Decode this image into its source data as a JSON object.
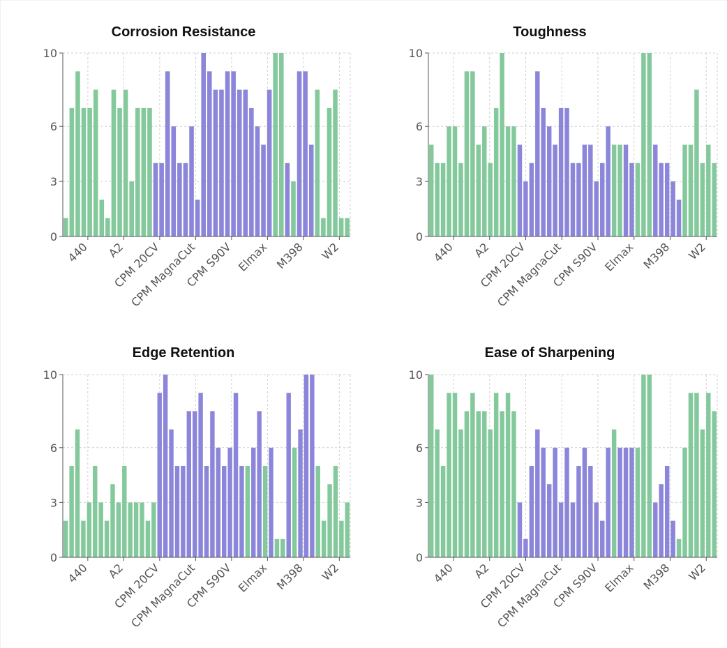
{
  "colors": {
    "green": "#84c99b",
    "purple": "#8b86d9",
    "grid": "#cfcfcf",
    "axis": "#555555"
  },
  "chart_data": [
    {
      "type": "bar",
      "title": "Corrosion Resistance",
      "ylim": [
        0,
        10
      ],
      "yticks": [
        0,
        3,
        6,
        10
      ],
      "xticks": [
        "440",
        "A2",
        "CPM 20CV",
        "CPM MagnaCut",
        "CPM S90V",
        "Elmax",
        "M398",
        "W2"
      ],
      "values": [
        1,
        7,
        9,
        7,
        7,
        8,
        2,
        1,
        8,
        7,
        8,
        3,
        7,
        7,
        7,
        4,
        4,
        9,
        6,
        4,
        4,
        6,
        2,
        10,
        9,
        8,
        8,
        9,
        9,
        8,
        8,
        7,
        6,
        5,
        8,
        10,
        10,
        4,
        3,
        9,
        9,
        5,
        8,
        1,
        7,
        8,
        1,
        1
      ],
      "groups": [
        "green",
        "green",
        "green",
        "green",
        "green",
        "green",
        "green",
        "green",
        "green",
        "green",
        "green",
        "green",
        "green",
        "green",
        "green",
        "purple",
        "purple",
        "purple",
        "purple",
        "purple",
        "purple",
        "purple",
        "purple",
        "purple",
        "purple",
        "purple",
        "purple",
        "purple",
        "purple",
        "purple",
        "purple",
        "purple",
        "purple",
        "purple",
        "purple",
        "green",
        "green",
        "purple",
        "green",
        "purple",
        "purple",
        "purple",
        "green",
        "green",
        "green",
        "green",
        "green",
        "green"
      ]
    },
    {
      "type": "bar",
      "title": "Toughness",
      "ylim": [
        0,
        10
      ],
      "yticks": [
        0,
        3,
        6,
        10
      ],
      "xticks": [
        "440",
        "A2",
        "CPM 20CV",
        "CPM MagnaCut",
        "CPM S90V",
        "Elmax",
        "M398",
        "W2"
      ],
      "values": [
        5,
        4,
        4,
        6,
        6,
        4,
        9,
        9,
        5,
        6,
        4,
        7,
        10,
        6,
        6,
        5,
        3,
        4,
        9,
        7,
        6,
        5,
        7,
        7,
        4,
        4,
        5,
        5,
        3,
        4,
        6,
        5,
        5,
        5,
        4,
        4,
        10,
        10,
        5,
        4,
        4,
        3,
        2,
        5,
        5,
        8,
        4,
        5,
        4
      ],
      "groups": [
        "green",
        "green",
        "green",
        "green",
        "green",
        "green",
        "green",
        "green",
        "green",
        "green",
        "green",
        "green",
        "green",
        "green",
        "green",
        "purple",
        "purple",
        "purple",
        "purple",
        "purple",
        "purple",
        "purple",
        "purple",
        "purple",
        "purple",
        "purple",
        "purple",
        "purple",
        "purple",
        "purple",
        "purple",
        "green",
        "green",
        "purple",
        "purple",
        "green",
        "green",
        "green",
        "purple",
        "purple",
        "purple",
        "purple",
        "purple",
        "green",
        "green",
        "green",
        "green",
        "green",
        "green"
      ]
    },
    {
      "type": "bar",
      "title": "Edge Retention",
      "ylim": [
        0,
        10
      ],
      "yticks": [
        0,
        3,
        6,
        10
      ],
      "xticks": [
        "440",
        "A2",
        "CPM 20CV",
        "CPM MagnaCut",
        "CPM S90V",
        "Elmax",
        "M398",
        "W2"
      ],
      "values": [
        2,
        5,
        7,
        2,
        3,
        5,
        3,
        2,
        4,
        3,
        5,
        3,
        3,
        3,
        2,
        3,
        9,
        10,
        7,
        5,
        5,
        8,
        8,
        9,
        5,
        8,
        6,
        5,
        6,
        9,
        5,
        5,
        6,
        8,
        5,
        6,
        1,
        1,
        9,
        6,
        7,
        10,
        10,
        5,
        2,
        4,
        5,
        2,
        3
      ],
      "groups": [
        "green",
        "green",
        "green",
        "green",
        "green",
        "green",
        "green",
        "green",
        "green",
        "green",
        "green",
        "green",
        "green",
        "green",
        "green",
        "green",
        "purple",
        "purple",
        "purple",
        "purple",
        "purple",
        "purple",
        "purple",
        "purple",
        "purple",
        "purple",
        "purple",
        "purple",
        "purple",
        "purple",
        "purple",
        "green",
        "purple",
        "purple",
        "green",
        "purple",
        "green",
        "green",
        "purple",
        "green",
        "purple",
        "purple",
        "purple",
        "green",
        "green",
        "green",
        "green",
        "green",
        "green"
      ]
    },
    {
      "type": "bar",
      "title": "Ease of Sharpening",
      "ylim": [
        0,
        10
      ],
      "yticks": [
        0,
        3,
        6,
        10
      ],
      "xticks": [
        "440",
        "A2",
        "CPM 20CV",
        "CPM MagnaCut",
        "CPM S90V",
        "Elmax",
        "M398",
        "W2"
      ],
      "values": [
        10,
        7,
        5,
        9,
        9,
        7,
        8,
        9,
        8,
        8,
        7,
        9,
        8,
        9,
        8,
        3,
        1,
        5,
        7,
        6,
        4,
        6,
        3,
        6,
        3,
        5,
        6,
        5,
        3,
        2,
        6,
        7,
        6,
        6,
        6,
        6,
        10,
        10,
        3,
        4,
        5,
        2,
        1,
        6,
        9,
        9,
        7,
        9,
        8
      ],
      "groups": [
        "green",
        "green",
        "green",
        "green",
        "green",
        "green",
        "green",
        "green",
        "green",
        "green",
        "green",
        "green",
        "green",
        "green",
        "green",
        "purple",
        "purple",
        "purple",
        "purple",
        "purple",
        "purple",
        "purple",
        "purple",
        "purple",
        "purple",
        "purple",
        "purple",
        "purple",
        "purple",
        "purple",
        "purple",
        "green",
        "purple",
        "purple",
        "purple",
        "green",
        "green",
        "green",
        "purple",
        "purple",
        "purple",
        "purple",
        "green",
        "green",
        "green",
        "green",
        "green",
        "green",
        "green"
      ]
    }
  ]
}
